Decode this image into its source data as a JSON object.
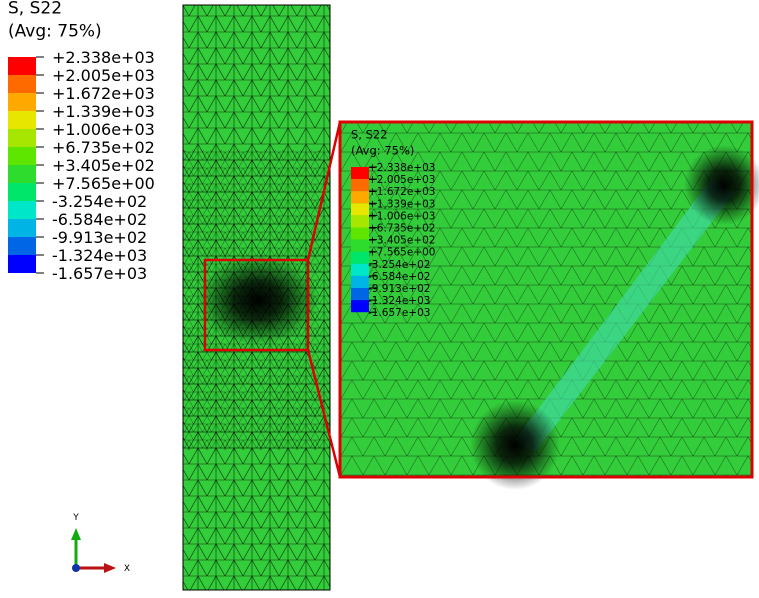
{
  "legend": {
    "title": "S, S22",
    "subtitle": "(Avg: 75%)",
    "labels": [
      "+2.338e+03",
      "+2.005e+03",
      "+1.672e+03",
      "+1.339e+03",
      "+1.006e+03",
      "+6.735e+02",
      "+3.405e+02",
      "+7.565e+00",
      "-3.254e+02",
      "-6.584e+02",
      "-9.913e+02",
      "-1.324e+03",
      "-1.657e+03"
    ],
    "colors": [
      "#ff0000",
      "#ff6a00",
      "#ffa800",
      "#e6e600",
      "#a6e600",
      "#5ee600",
      "#2edc2e",
      "#00e66a",
      "#00e6c8",
      "#00b4e6",
      "#0066e6",
      "#0000ff"
    ]
  },
  "triad": {
    "y": "Y",
    "x": "X"
  }
}
